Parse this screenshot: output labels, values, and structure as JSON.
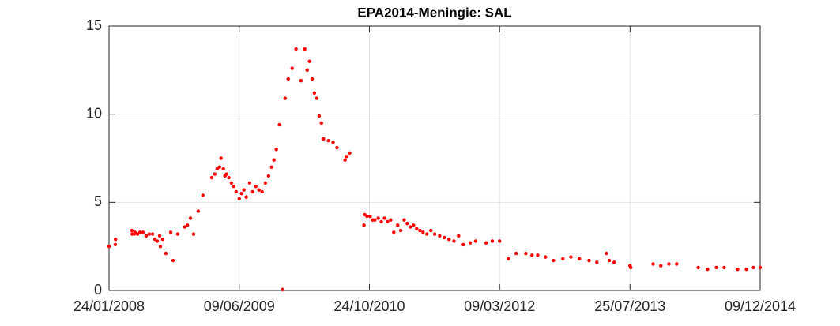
{
  "chart_data": {
    "type": "scatter",
    "title": "EPA2014-Meningie: SAL",
    "x": [
      "24/01/2008",
      "17/02/2008",
      "18/02/2008",
      "21/04/2008",
      "22/04/2008",
      "30/04/2008",
      "03/05/2008",
      "13/05/2008",
      "22/05/2008",
      "03/06/2008",
      "15/06/2008",
      "27/06/2008",
      "10/07/2008",
      "19/07/2008",
      "28/07/2008",
      "06/08/2008",
      "09/08/2008",
      "18/08/2008",
      "30/08/2008",
      "18/09/2008",
      "27/09/2008",
      "15/10/2008",
      "11/11/2008",
      "21/11/2008",
      "03/12/2008",
      "15/12/2008",
      "02/01/2009",
      "20/01/2009",
      "23/02/2009",
      "07/03/2009",
      "16/03/2009",
      "25/03/2009",
      "31/03/2009",
      "09/04/2009",
      "15/04/2009",
      "21/04/2009",
      "30/04/2009",
      "10/05/2009",
      "19/05/2009",
      "28/05/2009",
      "09/06/2009",
      "18/06/2009",
      "27/06/2009",
      "06/07/2009",
      "19/07/2009",
      "31/07/2009",
      "12/08/2009",
      "24/08/2009",
      "05/09/2009",
      "18/09/2009",
      "30/09/2009",
      "12/10/2009",
      "21/10/2009",
      "30/10/2009",
      "11/11/2009",
      "23/11/2009",
      "03/12/2009",
      "15/12/2009",
      "30/12/2009",
      "14/01/2010",
      "02/02/2010",
      "17/02/2010",
      "26/02/2010",
      "07/03/2010",
      "17/03/2010",
      "26/03/2010",
      "04/04/2010",
      "13/04/2010",
      "22/04/2010",
      "30/04/2010",
      "19/05/2010",
      "06/06/2010",
      "21/06/2010",
      "22/07/2010",
      "27/07/2010",
      "09/08/2010",
      "03/10/2010",
      "06/10/2010",
      "15/10/2010",
      "27/10/2010",
      "05/11/2010",
      "14/11/2010",
      "27/11/2010",
      "09/12/2010",
      "21/12/2010",
      "02/01/2011",
      "14/01/2011",
      "26/01/2011",
      "10/02/2011",
      "22/02/2011",
      "07/03/2011",
      "19/03/2011",
      "31/03/2011",
      "12/04/2011",
      "24/04/2011",
      "07/05/2011",
      "19/05/2011",
      "03/06/2011",
      "18/06/2011",
      "03/07/2011",
      "22/07/2011",
      "09/08/2011",
      "27/08/2011",
      "15/09/2011",
      "03/10/2011",
      "21/10/2011",
      "17/11/2011",
      "08/12/2011",
      "17/01/2012",
      "10/02/2012",
      "09/03/2012",
      "12/04/2012",
      "12/05/2012",
      "18/06/2012",
      "12/07/2012",
      "03/08/2012",
      "02/09/2012",
      "03/10/2012",
      "08/11/2012",
      "09/12/2012",
      "11/01/2013",
      "17/02/2013",
      "19/03/2013",
      "25/04/2013",
      "06/05/2013",
      "25/05/2013",
      "25/07/2013",
      "28/07/2013",
      "22/10/2013",
      "21/11/2013",
      "22/12/2013",
      "21/01/2014",
      "14/04/2014",
      "20/05/2014",
      "23/06/2014",
      "23/07/2014",
      "13/09/2014",
      "17/10/2014",
      "13/11/2014",
      "09/12/2014"
    ],
    "values": [
      2.5,
      2.6,
      2.9,
      3.4,
      3.2,
      3.2,
      3.3,
      3.2,
      3.3,
      3.3,
      3.1,
      3.2,
      3.2,
      2.9,
      2.8,
      3.1,
      2.5,
      2.9,
      2.1,
      3.3,
      1.7,
      3.2,
      3.6,
      3.7,
      4.1,
      3.2,
      4.5,
      5.4,
      6.4,
      6.6,
      6.9,
      7.0,
      7.5,
      6.9,
      6.5,
      6.6,
      6.4,
      6.1,
      5.9,
      5.6,
      5.2,
      5.5,
      5.7,
      5.3,
      6.1,
      5.6,
      5.9,
      5.7,
      5.6,
      6.1,
      6.5,
      7.0,
      7.4,
      8.0,
      9.4,
      0.05,
      10.9,
      12.0,
      12.6,
      13.7,
      11.9,
      13.7,
      12.5,
      13.0,
      12.0,
      11.2,
      10.9,
      9.9,
      9.5,
      8.6,
      8.5,
      8.4,
      8.1,
      7.4,
      7.6,
      7.8,
      3.7,
      4.3,
      4.2,
      4.2,
      4.0,
      4.0,
      4.1,
      3.9,
      4.1,
      3.9,
      4.0,
      3.3,
      3.7,
      3.4,
      4.0,
      3.8,
      3.6,
      3.7,
      3.5,
      3.4,
      3.3,
      3.2,
      3.4,
      3.2,
      3.1,
      3.0,
      2.9,
      2.8,
      3.1,
      2.6,
      2.7,
      2.8,
      2.7,
      2.8,
      2.8,
      1.8,
      2.1,
      2.1,
      2.0,
      2.0,
      1.9,
      1.7,
      1.8,
      1.9,
      1.8,
      1.7,
      1.6,
      2.1,
      1.7,
      1.6,
      1.4,
      1.3,
      1.5,
      1.4,
      1.5,
      1.5,
      1.3,
      1.2,
      1.3,
      1.3,
      1.2,
      1.2,
      1.3,
      1.3
    ],
    "color": "#ff0000",
    "xlim": [
      "24/01/2008",
      "09/12/2014"
    ],
    "xticks": [
      "24/01/2008",
      "09/06/2009",
      "24/10/2010",
      "09/03/2012",
      "25/07/2013",
      "09/12/2014"
    ],
    "ylim": [
      0,
      15
    ],
    "yticks": [
      0,
      5,
      10,
      15
    ],
    "grid": true
  }
}
